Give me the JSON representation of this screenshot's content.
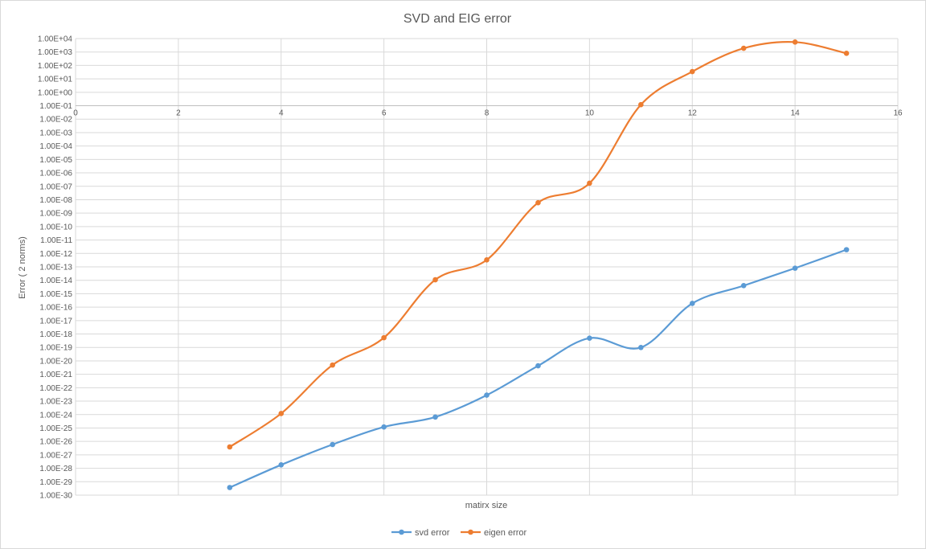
{
  "chart_data": {
    "type": "scatter",
    "title": "SVD and EIG error",
    "xlabel": "matirx size",
    "ylabel": "Error ( 2 norms)",
    "xlim": [
      0,
      16
    ],
    "x_ticks": [
      0,
      2,
      4,
      6,
      8,
      10,
      12,
      14,
      16
    ],
    "yscale": "log",
    "ylim": [
      1e-30,
      10000.0
    ],
    "y_tick_labels": [
      "1.00E+04",
      "1.00E+03",
      "1.00E+02",
      "1.00E+01",
      "1.00E+00",
      "1.00E-01",
      "1.00E-02",
      "1.00E-03",
      "1.00E-04",
      "1.00E-05",
      "1.00E-06",
      "1.00E-07",
      "1.00E-08",
      "1.00E-09",
      "1.00E-10",
      "1.00E-11",
      "1.00E-12",
      "1.00E-13",
      "1.00E-14",
      "1.00E-15",
      "1.00E-16",
      "1.00E-17",
      "1.00E-18",
      "1.00E-19",
      "1.00E-20",
      "1.00E-21",
      "1.00E-22",
      "1.00E-23",
      "1.00E-24",
      "1.00E-25",
      "1.00E-26",
      "1.00E-27",
      "1.00E-28",
      "1.00E-29",
      "1.00E-30"
    ],
    "x_axis_crosses_at": 0.1,
    "grid": true,
    "smooth": true,
    "legend_position": "bottom",
    "series": [
      {
        "name": "svd error",
        "color": "#5b9bd5",
        "x": [
          3,
          4,
          5,
          6,
          7,
          8,
          9,
          10,
          11,
          12,
          13,
          14,
          15
        ],
        "y": [
          3.7e-30,
          1.8e-28,
          5.9e-27,
          1.2e-25,
          6.6e-25,
          2.8e-23,
          4.3e-21,
          4.9e-19,
          9.9e-20,
          1.9e-16,
          4e-15,
          8e-14,
          1.9e-12
        ]
      },
      {
        "name": "eigen error",
        "color": "#ed7d31",
        "x": [
          3,
          4,
          5,
          6,
          7,
          8,
          9,
          10,
          11,
          12,
          13,
          14,
          15
        ],
        "y": [
          3.9e-27,
          1.2e-24,
          4.9e-21,
          5.3e-19,
          1.1e-14,
          3.3e-13,
          6e-09,
          1.7e-07,
          0.12,
          35,
          1900,
          5500,
          800
        ]
      }
    ]
  }
}
